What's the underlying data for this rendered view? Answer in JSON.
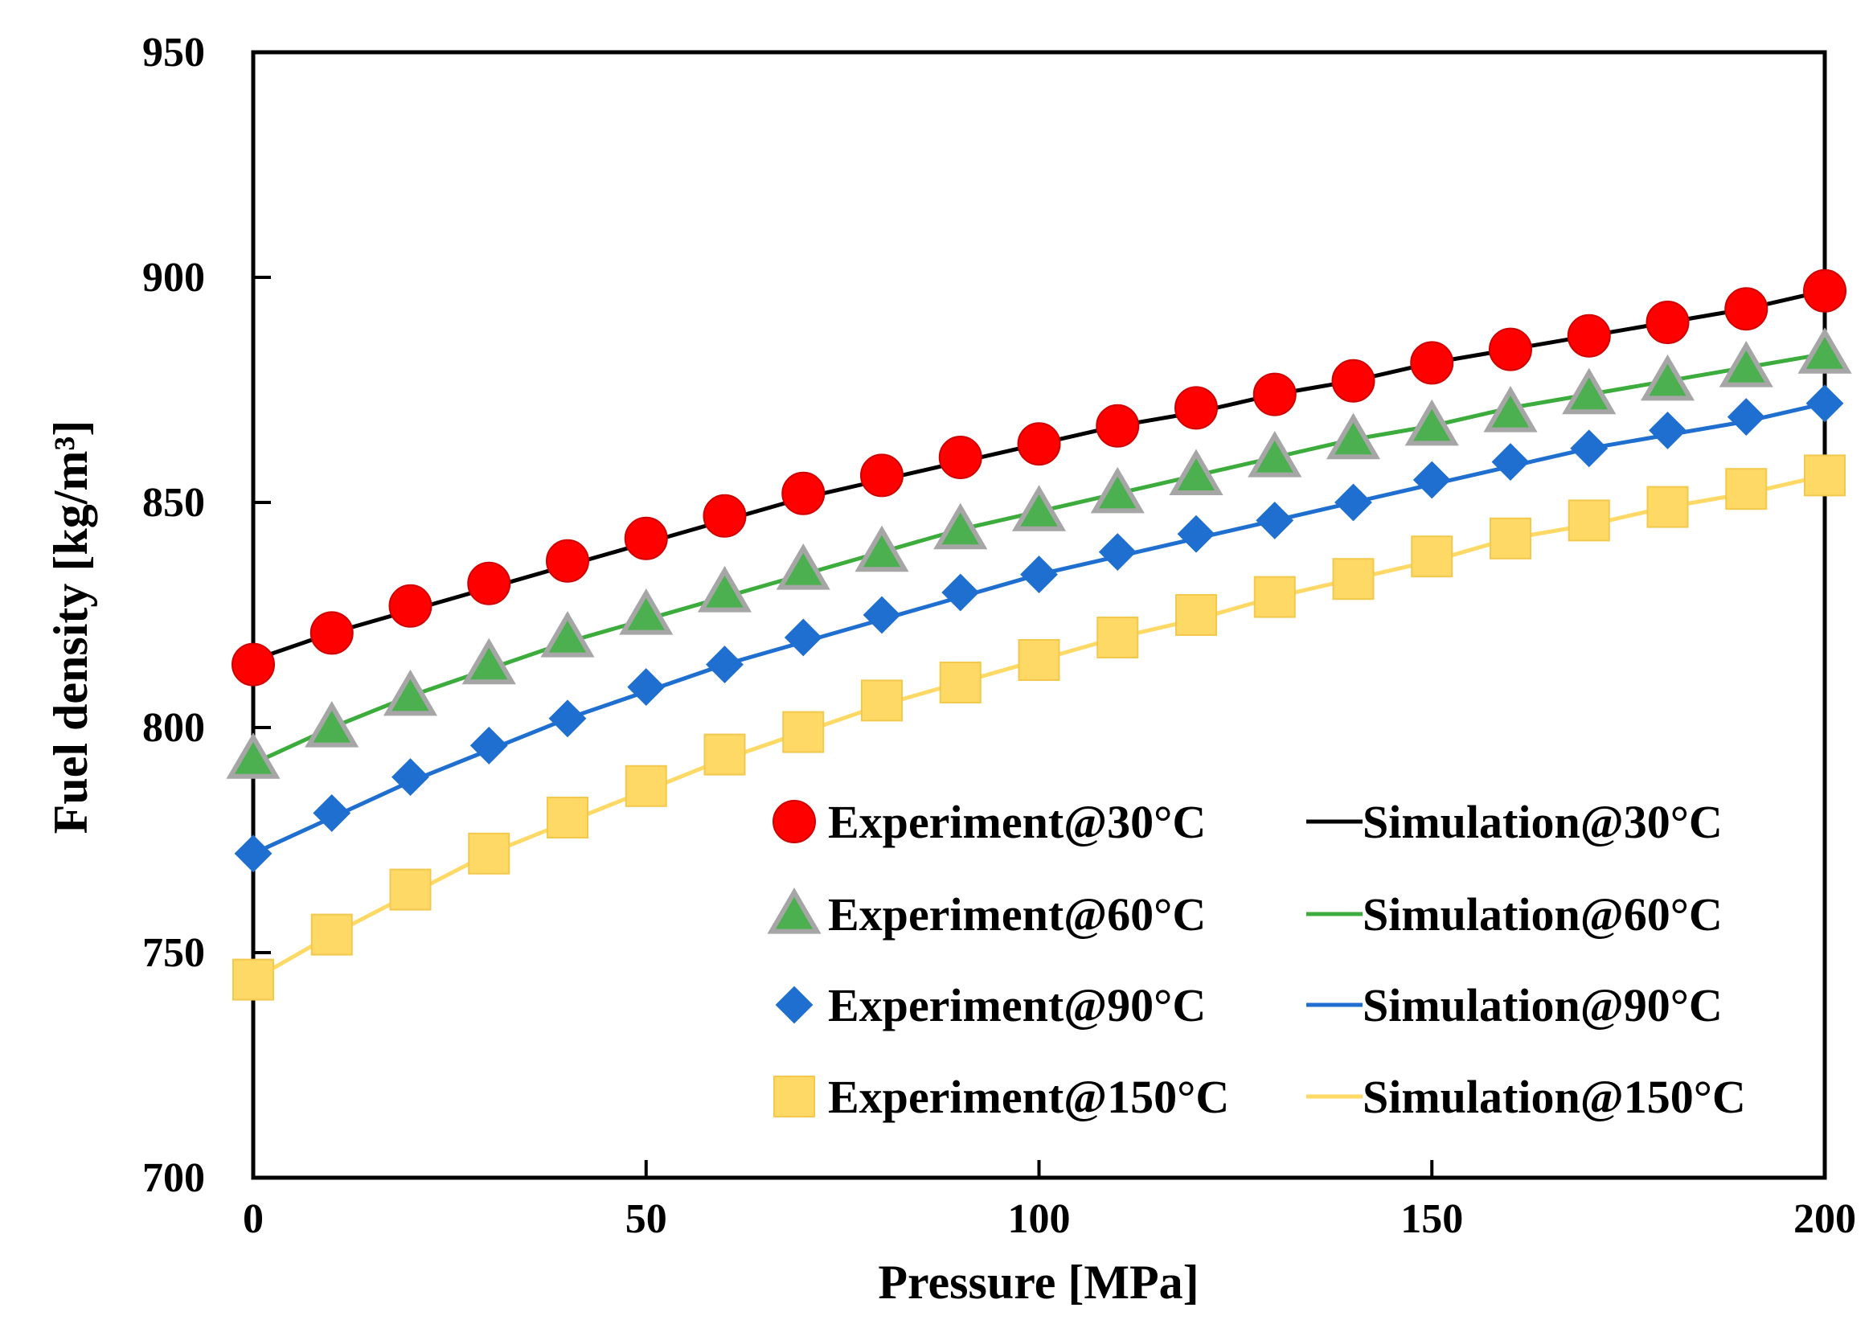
{
  "chart_data": {
    "type": "line",
    "xlabel": "Pressure [MPa]",
    "ylabel": "Fuel density  [kg/m³]",
    "xlim": [
      0,
      200
    ],
    "ylim": [
      700,
      950
    ],
    "xticks": [
      0,
      50,
      100,
      150,
      200
    ],
    "yticks": [
      700,
      750,
      800,
      850,
      900,
      950
    ],
    "grid": false,
    "legend_position": "lower-right",
    "x": [
      0,
      10,
      20,
      30,
      40,
      50,
      60,
      70,
      80,
      90,
      100,
      110,
      120,
      130,
      140,
      150,
      160,
      170,
      180,
      190,
      200
    ],
    "series": [
      {
        "name": "30°C",
        "experiment_label": "Experiment@30°C",
        "simulation_label": "Simulation@30°C",
        "marker": "circle",
        "marker_color": "#ff0000",
        "line_color": "#000000",
        "experiment": [
          814,
          821,
          827,
          832,
          837,
          842,
          847,
          852,
          856,
          860,
          863,
          867,
          871,
          874,
          877,
          881,
          884,
          887,
          890,
          893,
          897
        ],
        "simulation": [
          815,
          821,
          826,
          831,
          836,
          841,
          846,
          851,
          855,
          859,
          863,
          867,
          870,
          874,
          877,
          881,
          884,
          887,
          890,
          893,
          897
        ]
      },
      {
        "name": "60°C",
        "experiment_label": "Experiment@60°C",
        "simulation_label": "Simulation@60°C",
        "marker": "triangle",
        "marker_color": "#4caf50",
        "line_color": "#3cac3c",
        "experiment": [
          793,
          800,
          807,
          814,
          820,
          825,
          830,
          835,
          839,
          844,
          848,
          852,
          856,
          860,
          864,
          867,
          870,
          874,
          877,
          880,
          883
        ],
        "simulation": [
          792,
          800,
          807,
          813,
          819,
          824,
          829,
          834,
          839,
          844,
          848,
          852,
          856,
          860,
          864,
          867,
          871,
          874,
          877,
          880,
          883
        ]
      },
      {
        "name": "90°C",
        "experiment_label": "Experiment@90°C",
        "simulation_label": "Simulation@90°C",
        "marker": "diamond",
        "marker_color": "#1f6fd1",
        "line_color": "#1f6fd1",
        "experiment": [
          772,
          781,
          789,
          796,
          802,
          809,
          814,
          820,
          825,
          830,
          834,
          839,
          843,
          846,
          850,
          855,
          859,
          862,
          866,
          869,
          872
        ],
        "simulation": [
          772,
          780,
          788,
          795,
          802,
          808,
          814,
          819,
          824,
          829,
          834,
          838,
          842,
          846,
          850,
          854,
          858,
          862,
          865,
          868,
          872
        ]
      },
      {
        "name": "150°C",
        "experiment_label": "Experiment@150°C",
        "simulation_label": "Simulation@150°C",
        "marker": "square",
        "marker_color": "#ffd966",
        "line_color": "#ffd966",
        "experiment": [
          744,
          754,
          764,
          772,
          780,
          787,
          794,
          799,
          806,
          810,
          815,
          820,
          825,
          829,
          833,
          838,
          842,
          846,
          849,
          853,
          856
        ],
        "simulation": [
          744,
          754,
          763,
          772,
          779,
          786,
          793,
          799,
          805,
          810,
          815,
          820,
          824,
          829,
          833,
          837,
          842,
          845,
          849,
          852,
          856
        ]
      }
    ]
  }
}
